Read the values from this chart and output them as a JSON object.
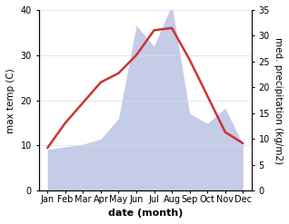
{
  "months": [
    "Jan",
    "Feb",
    "Mar",
    "Apr",
    "May",
    "Jun",
    "Jul",
    "Aug",
    "Sep",
    "Oct",
    "Nov",
    "Dec"
  ],
  "month_x": [
    0,
    1,
    2,
    3,
    4,
    5,
    6,
    7,
    8,
    9,
    10,
    11
  ],
  "temp": [
    9.5,
    15.0,
    19.5,
    24.0,
    26.0,
    30.0,
    35.5,
    36.0,
    29.0,
    21.0,
    13.0,
    10.5
  ],
  "precip": [
    8.0,
    8.5,
    9.0,
    10.0,
    14.0,
    32.0,
    28.0,
    36.0,
    15.0,
    13.0,
    16.0,
    9.0
  ],
  "temp_color": "#cc3333",
  "precip_fill_color": "#c5cce8",
  "left_ylabel": "max temp (C)",
  "right_ylabel": "med. precipitation (kg/m2)",
  "xlabel": "date (month)",
  "left_ylim": [
    0,
    40
  ],
  "right_ylim": [
    0,
    35
  ],
  "left_yticks": [
    0,
    10,
    20,
    30,
    40
  ],
  "right_yticks": [
    0,
    5,
    10,
    15,
    20,
    25,
    30,
    35
  ],
  "line_width": 1.8,
  "grid_color": "#dddddd",
  "ylabel_fontsize": 7.5,
  "xlabel_fontsize": 8,
  "tick_fontsize": 7
}
